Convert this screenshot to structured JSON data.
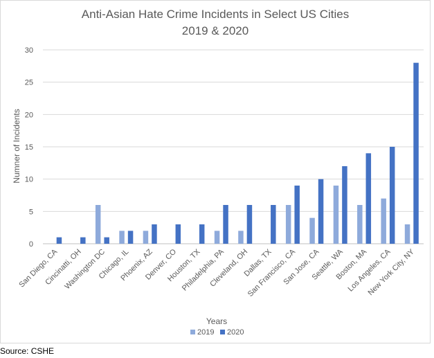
{
  "source_note": "Source: CSHE",
  "colors": {
    "s2019": "#8eaadb",
    "s2020": "#4472c4",
    "grid": "#d9d9d9",
    "text": "#595959"
  },
  "chart_data": {
    "type": "bar",
    "title": "Anti-Asian Hate Crime Incidents in Select US Cities",
    "subtitle": "2019 & 2020",
    "xlabel": "Years",
    "ylabel": "Numner of Incidents",
    "ylim": [
      0,
      30
    ],
    "yticks": [
      0,
      5,
      10,
      15,
      20,
      25,
      30
    ],
    "grid": true,
    "legend_position": "bottom",
    "categories": [
      "San Diego, CA",
      "Cincinatti, OH",
      "Washington DC",
      "Chicago, IL",
      "Phoenix, AZ",
      "Denver, CO",
      "Houston, TX",
      "Philadelphia, PA",
      "Cleveland, OH",
      "Dallas, TX",
      "San Francisco, CA",
      "San Jose, CA",
      "Seattle, WA",
      "Boston, MA",
      "Los Angeles, CA",
      "New York City, NY"
    ],
    "series": [
      {
        "name": "2019",
        "values": [
          0,
          0,
          6,
          2,
          2,
          0,
          0,
          2,
          2,
          0,
          6,
          4,
          9,
          6,
          7,
          3
        ]
      },
      {
        "name": "2020",
        "values": [
          1,
          1,
          1,
          2,
          3,
          3,
          3,
          6,
          6,
          6,
          9,
          10,
          12,
          14,
          15,
          28
        ]
      }
    ]
  }
}
